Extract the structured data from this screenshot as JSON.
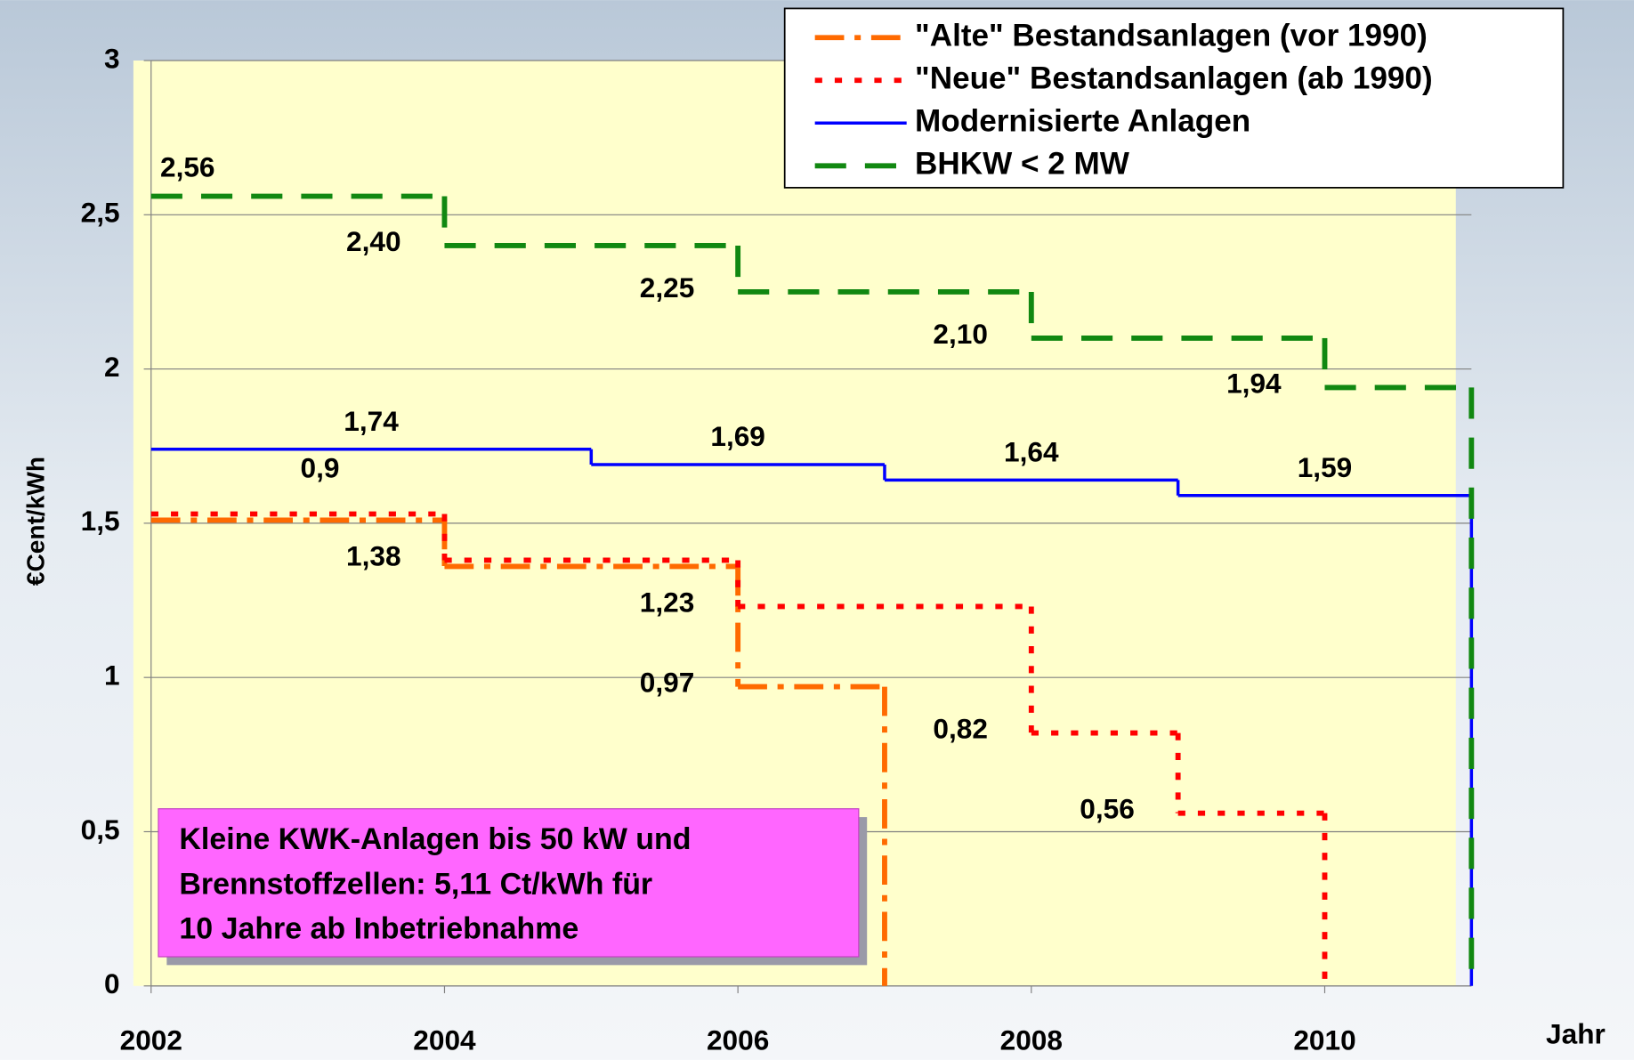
{
  "chart_data": {
    "type": "line",
    "step": "post",
    "xlabel": "Jahr",
    "ylabel": "€Cent/kWh",
    "xlim": [
      2002,
      2011
    ],
    "xticks": [
      2002,
      2004,
      2006,
      2008,
      2010
    ],
    "ylim": [
      0,
      3
    ],
    "yticks": [
      0,
      {
        "value": 0.5,
        "label": "0,5"
      },
      1,
      {
        "value": 1.5,
        "label": "1,5"
      },
      2,
      {
        "value": 2.5,
        "label": "2,5"
      },
      3
    ],
    "grid": true,
    "legend": "upper right",
    "series": [
      {
        "name": "\"Alte\" Bestandsanlagen (vor 1990)",
        "color": "#ff6a00",
        "dash": "dashdot",
        "x": [
          2002,
          2004,
          2006,
          2007
        ],
        "values": [
          1.51,
          1.36,
          0.97,
          0
        ],
        "value_labels": [
          null,
          null,
          "0,97",
          null
        ]
      },
      {
        "name": "\"Neue\" Bestandsanlagen (ab 1990)",
        "color": "#ff0000",
        "dash": "dot",
        "x": [
          2002,
          2004,
          2006,
          2008,
          2009,
          2010
        ],
        "values": [
          1.53,
          1.38,
          1.23,
          0.82,
          0.56,
          0
        ],
        "value_labels": [
          null,
          "1,38",
          "1,23",
          "0,82",
          "0,56",
          null
        ]
      },
      {
        "name": "Modernisierte Anlagen",
        "color": "#0000ff",
        "dash": "solid",
        "x": [
          2002,
          2005,
          2007,
          2009,
          2011
        ],
        "values": [
          1.74,
          1.69,
          1.64,
          1.59,
          0
        ],
        "value_labels": [
          "1,74",
          "1,69",
          "1,64",
          "1,59",
          null
        ]
      },
      {
        "name": "BHKW < 2 MW",
        "color": "#118811",
        "dash": "dash",
        "x": [
          2002,
          2004,
          2006,
          2008,
          2010,
          2011
        ],
        "values": [
          2.56,
          2.4,
          2.25,
          2.1,
          1.94,
          0
        ],
        "value_labels": [
          "2,56",
          "2,40",
          "2,25",
          "2,10",
          "1,94",
          null
        ]
      }
    ],
    "annotations": [
      "0,9"
    ],
    "note": [
      "Kleine KWK-Anlagen bis 50 kW und",
      "Brennstoffzellen: 5,11 Ct/kWh für",
      "10 Jahre ab Inbetriebnahme"
    ]
  }
}
